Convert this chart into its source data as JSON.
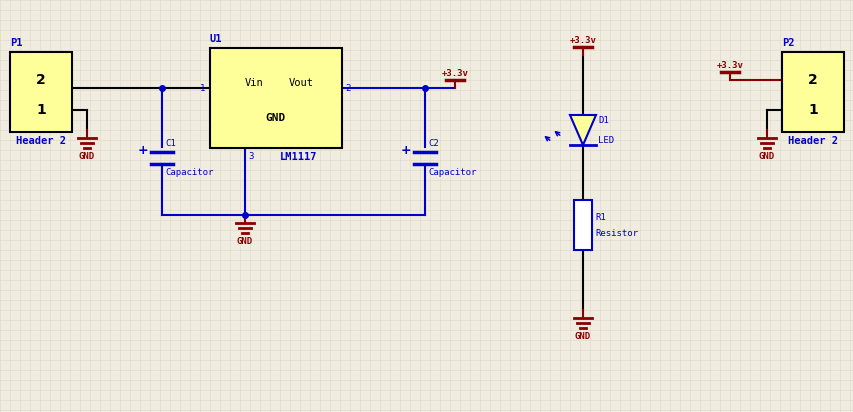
{
  "bg_color": "#f0ece0",
  "grid_color": "#ddd8c8",
  "blue": "#0000cc",
  "dark_red": "#880000",
  "black": "#000000",
  "yellow_fill": "#ffff99",
  "p1_label": "P1",
  "p1_sub": "Header 2",
  "p2_label": "P2",
  "p2_sub": "Header 2",
  "u1_label": "U1",
  "u1_sub": "LM1117",
  "c1_label": "C1",
  "c1_sub": "Capacitor",
  "c2_label": "C2",
  "c2_sub": "Capacitor",
  "d1_label": "D1",
  "d1_sub": "LED",
  "r1_label": "R1",
  "r1_sub": "Resistor",
  "vcc_label": "+3.3v",
  "pin1_label": "1",
  "pin2_label": "2",
  "pin3_label": "3",
  "vin_label": "Vin",
  "vout_label": "Vout",
  "gnd_label": "GND",
  "gnd_text": "GND"
}
